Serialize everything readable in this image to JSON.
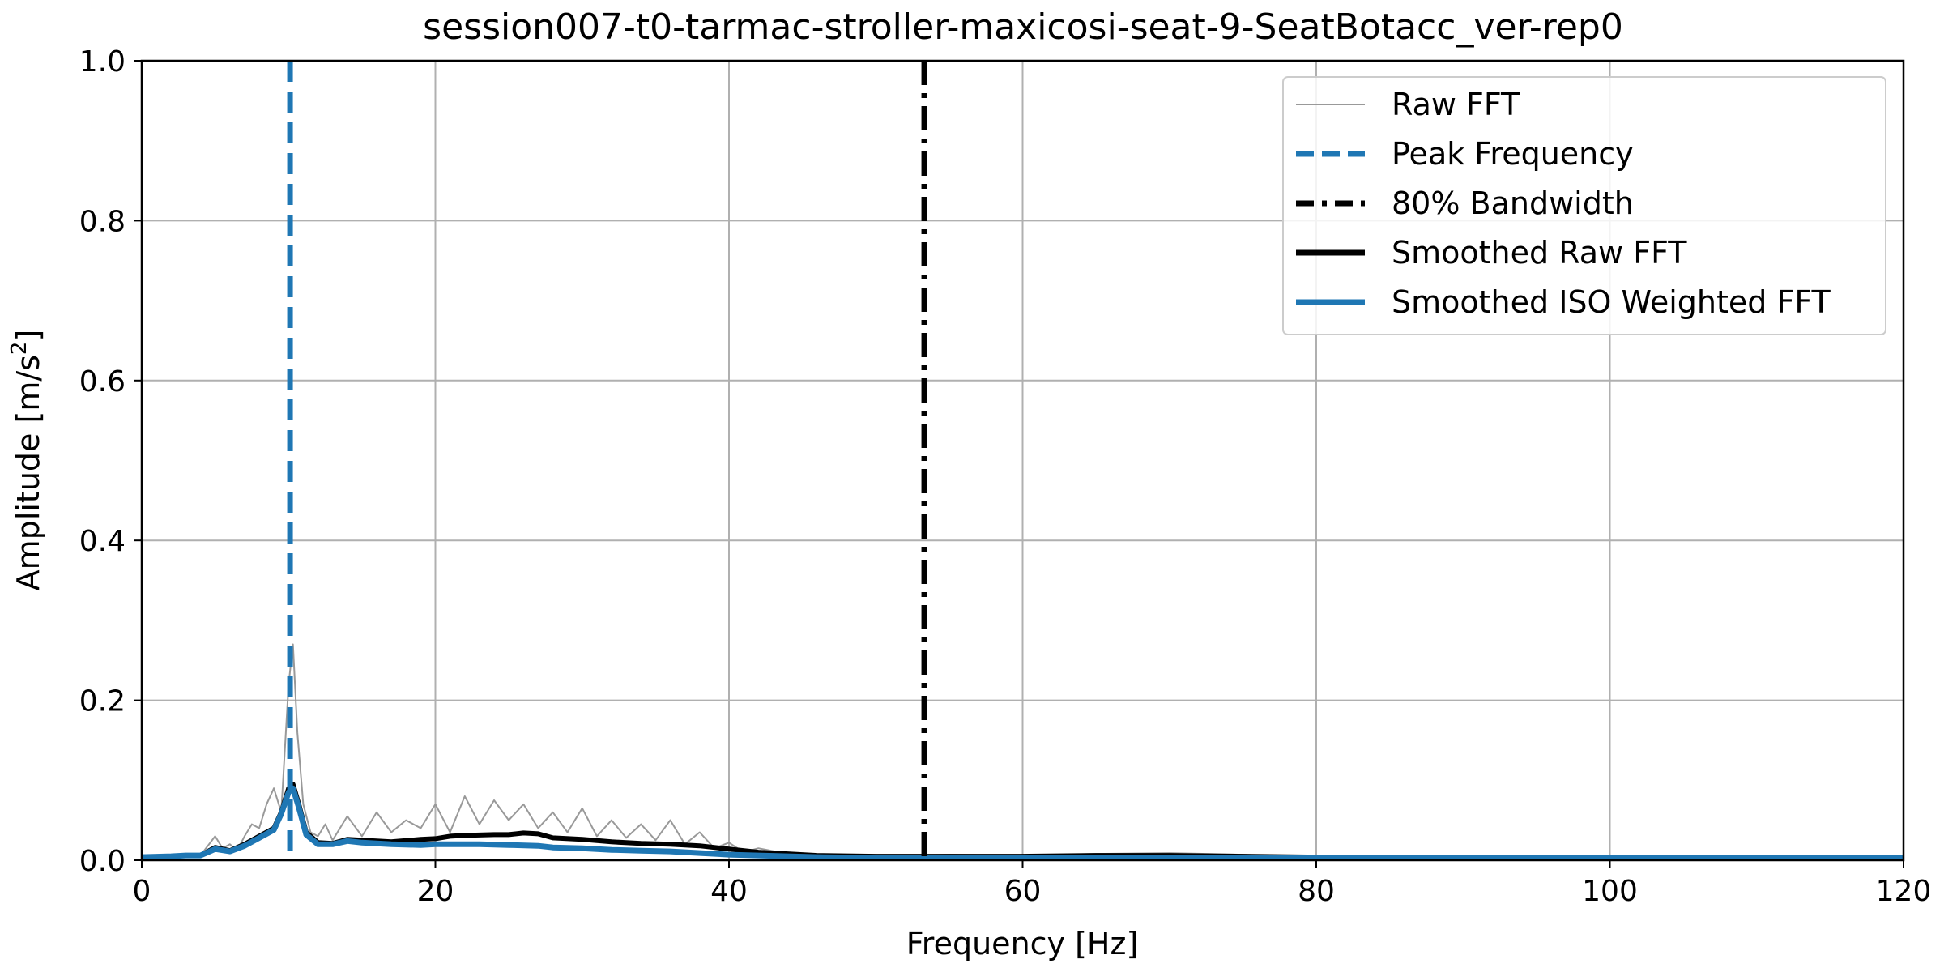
{
  "chart_data": {
    "type": "line",
    "title": "session007-t0-tarmac-stroller-maxicosi-seat-9-SeatBotacc_ver-rep0",
    "xlabel": "Frequency [Hz]",
    "ylabel_main": "Amplitude [m/s",
    "ylabel_sup": "2",
    "ylabel_end": "]",
    "xlim": [
      0,
      120
    ],
    "ylim": [
      0,
      1.0
    ],
    "x_ticks": [
      0,
      20,
      40,
      60,
      80,
      100,
      120
    ],
    "x_tick_labels": [
      "0",
      "20",
      "40",
      "60",
      "80",
      "100",
      "120"
    ],
    "y_ticks": [
      0.0,
      0.2,
      0.4,
      0.6,
      0.8,
      1.0
    ],
    "y_tick_labels": [
      "0.0",
      "0.2",
      "0.4",
      "0.6",
      "0.8",
      "1.0"
    ],
    "grid": true,
    "legend_position": "top-right",
    "colors": {
      "raw": "#999999",
      "peak": "#1f77b4",
      "bandwidth": "#000000",
      "smoothed_raw": "#000000",
      "smoothed_iso": "#1f77b4"
    },
    "vlines": [
      {
        "name": "Peak Frequency",
        "x": 10.1
      },
      {
        "name": "80% Bandwidth",
        "x": 53.3
      }
    ],
    "series": [
      {
        "name": "Raw FFT",
        "points": [
          [
            0,
            0.004
          ],
          [
            1,
            0.006
          ],
          [
            2,
            0.005
          ],
          [
            3,
            0.008
          ],
          [
            4,
            0.006
          ],
          [
            5,
            0.03
          ],
          [
            5.5,
            0.015
          ],
          [
            6,
            0.02
          ],
          [
            6.5,
            0.012
          ],
          [
            7,
            0.03
          ],
          [
            7.5,
            0.045
          ],
          [
            8,
            0.04
          ],
          [
            8.5,
            0.07
          ],
          [
            9,
            0.09
          ],
          [
            9.5,
            0.06
          ],
          [
            10,
            0.22
          ],
          [
            10.3,
            0.27
          ],
          [
            10.6,
            0.16
          ],
          [
            11,
            0.07
          ],
          [
            11.5,
            0.035
          ],
          [
            12,
            0.03
          ],
          [
            12.5,
            0.045
          ],
          [
            13,
            0.025
          ],
          [
            14,
            0.055
          ],
          [
            15,
            0.03
          ],
          [
            16,
            0.06
          ],
          [
            17,
            0.035
          ],
          [
            18,
            0.05
          ],
          [
            19,
            0.04
          ],
          [
            20,
            0.07
          ],
          [
            21,
            0.035
          ],
          [
            22,
            0.08
          ],
          [
            23,
            0.045
          ],
          [
            24,
            0.075
          ],
          [
            25,
            0.05
          ],
          [
            26,
            0.07
          ],
          [
            27,
            0.04
          ],
          [
            28,
            0.06
          ],
          [
            29,
            0.035
          ],
          [
            30,
            0.065
          ],
          [
            31,
            0.03
          ],
          [
            32,
            0.05
          ],
          [
            33,
            0.028
          ],
          [
            34,
            0.045
          ],
          [
            35,
            0.025
          ],
          [
            36,
            0.05
          ],
          [
            37,
            0.02
          ],
          [
            38,
            0.035
          ],
          [
            39,
            0.015
          ],
          [
            40,
            0.022
          ],
          [
            41,
            0.01
          ],
          [
            42,
            0.015
          ],
          [
            44,
            0.008
          ],
          [
            46,
            0.007
          ],
          [
            50,
            0.005
          ],
          [
            55,
            0.007
          ],
          [
            60,
            0.006
          ],
          [
            65,
            0.008
          ],
          [
            70,
            0.009
          ],
          [
            75,
            0.007
          ],
          [
            80,
            0.004
          ],
          [
            90,
            0.004
          ],
          [
            100,
            0.004
          ],
          [
            110,
            0.004
          ],
          [
            120,
            0.003
          ]
        ]
      },
      {
        "name": "Smoothed Raw FFT",
        "points": [
          [
            0,
            0.004
          ],
          [
            2,
            0.005
          ],
          [
            3,
            0.006
          ],
          [
            4,
            0.006
          ],
          [
            5,
            0.016
          ],
          [
            6,
            0.012
          ],
          [
            7,
            0.02
          ],
          [
            8,
            0.03
          ],
          [
            9,
            0.04
          ],
          [
            9.5,
            0.06
          ],
          [
            10,
            0.09
          ],
          [
            10.3,
            0.095
          ],
          [
            10.7,
            0.07
          ],
          [
            11.2,
            0.035
          ],
          [
            12,
            0.022
          ],
          [
            13,
            0.021
          ],
          [
            14,
            0.026
          ],
          [
            15,
            0.025
          ],
          [
            17,
            0.023
          ],
          [
            19,
            0.026
          ],
          [
            20,
            0.027
          ],
          [
            21,
            0.03
          ],
          [
            22,
            0.031
          ],
          [
            24,
            0.032
          ],
          [
            25,
            0.032
          ],
          [
            26,
            0.034
          ],
          [
            27,
            0.033
          ],
          [
            28,
            0.028
          ],
          [
            30,
            0.026
          ],
          [
            32,
            0.023
          ],
          [
            34,
            0.021
          ],
          [
            36,
            0.02
          ],
          [
            38,
            0.018
          ],
          [
            40,
            0.014
          ],
          [
            42,
            0.01
          ],
          [
            44,
            0.008
          ],
          [
            46,
            0.006
          ],
          [
            50,
            0.005
          ],
          [
            55,
            0.005
          ],
          [
            60,
            0.005
          ],
          [
            65,
            0.006
          ],
          [
            70,
            0.006
          ],
          [
            75,
            0.005
          ],
          [
            80,
            0.004
          ],
          [
            90,
            0.004
          ],
          [
            100,
            0.004
          ],
          [
            110,
            0.004
          ],
          [
            120,
            0.004
          ]
        ]
      },
      {
        "name": "Smoothed ISO Weighted FFT",
        "points": [
          [
            0,
            0.004
          ],
          [
            2,
            0.005
          ],
          [
            3,
            0.006
          ],
          [
            4,
            0.006
          ],
          [
            5,
            0.014
          ],
          [
            6,
            0.011
          ],
          [
            7,
            0.018
          ],
          [
            8,
            0.028
          ],
          [
            9,
            0.038
          ],
          [
            9.5,
            0.058
          ],
          [
            10,
            0.085
          ],
          [
            10.3,
            0.09
          ],
          [
            10.7,
            0.066
          ],
          [
            11.2,
            0.032
          ],
          [
            12,
            0.02
          ],
          [
            13,
            0.02
          ],
          [
            14,
            0.024
          ],
          [
            15,
            0.022
          ],
          [
            17,
            0.02
          ],
          [
            19,
            0.019
          ],
          [
            20,
            0.02
          ],
          [
            21,
            0.02
          ],
          [
            23,
            0.02
          ],
          [
            25,
            0.019
          ],
          [
            27,
            0.018
          ],
          [
            28,
            0.016
          ],
          [
            30,
            0.015
          ],
          [
            32,
            0.013
          ],
          [
            34,
            0.012
          ],
          [
            36,
            0.011
          ],
          [
            38,
            0.009
          ],
          [
            40,
            0.007
          ],
          [
            42,
            0.006
          ],
          [
            44,
            0.005
          ],
          [
            46,
            0.004
          ],
          [
            50,
            0.003
          ],
          [
            60,
            0.003
          ],
          [
            70,
            0.003
          ],
          [
            80,
            0.003
          ],
          [
            90,
            0.003
          ],
          [
            100,
            0.003
          ],
          [
            110,
            0.003
          ],
          [
            120,
            0.003
          ]
        ]
      }
    ],
    "legend": [
      {
        "label": "Raw FFT",
        "style": "thin-gray"
      },
      {
        "label": "Peak Frequency",
        "style": "dashed-blue"
      },
      {
        "label": "80% Bandwidth",
        "style": "dashdot-black"
      },
      {
        "label": "Smoothed Raw FFT",
        "style": "solid-black"
      },
      {
        "label": "Smoothed ISO Weighted FFT",
        "style": "solid-blue"
      }
    ]
  }
}
